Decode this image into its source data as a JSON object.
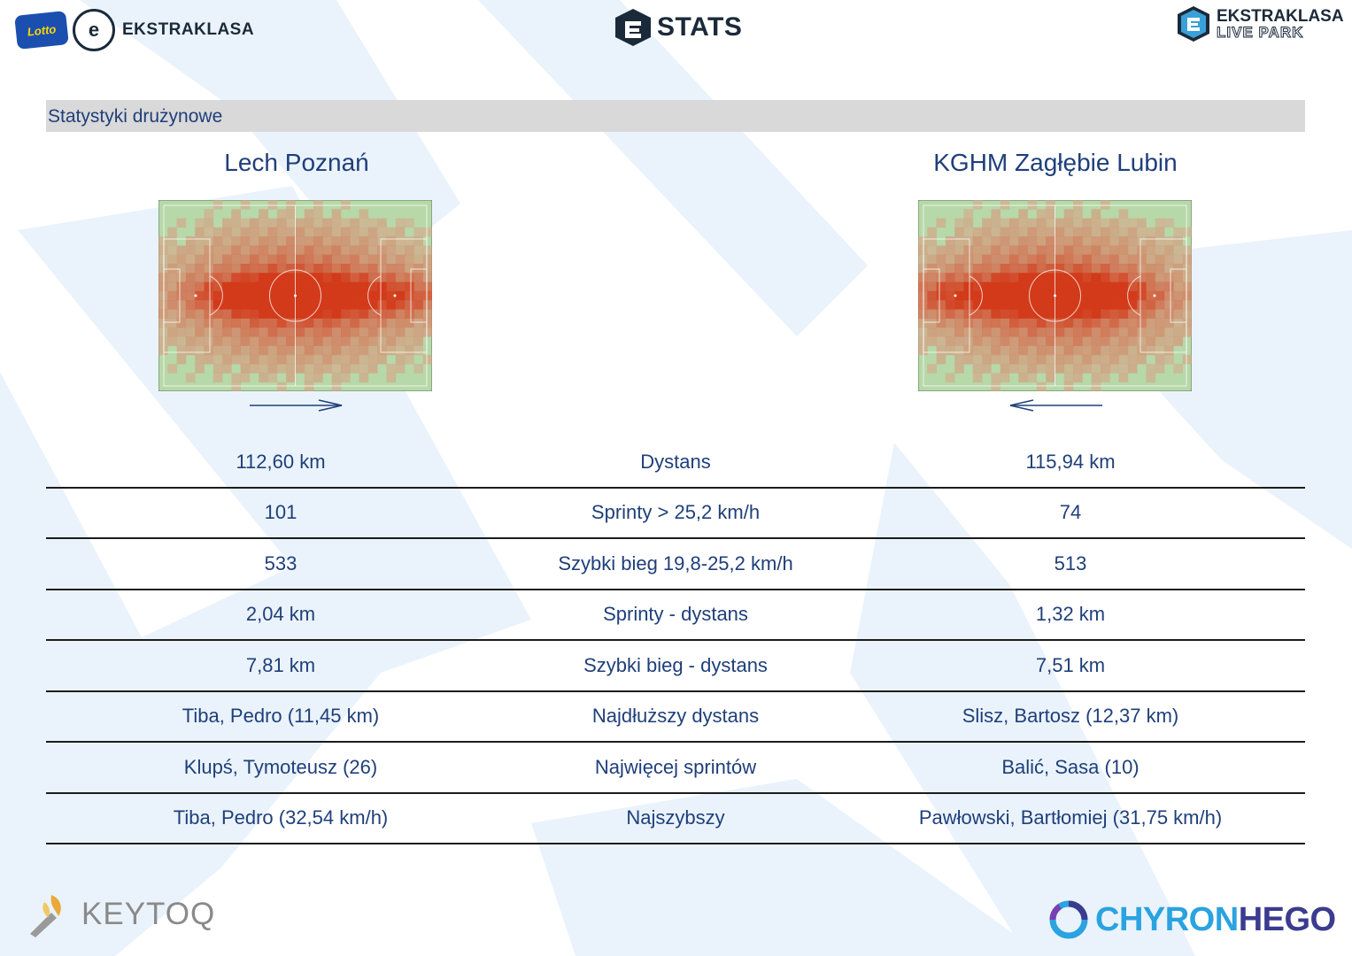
{
  "header": {
    "left_badge": "Lotto",
    "left_logo_text": "EKSTRAKLASA",
    "center_logo_text": "STATS",
    "right_logo_line1": "EKSTRAKLASA",
    "right_logo_line2": "LIVE PARK"
  },
  "section": {
    "title": "Statystyki drużynowe"
  },
  "teams": {
    "left": {
      "name": "Lech Poznań",
      "attack_direction": "right"
    },
    "right": {
      "name": "KGHM Zagłębie Lubin",
      "attack_direction": "left"
    }
  },
  "stats": {
    "rows": [
      {
        "left": "112,60 km",
        "label": "Dystans",
        "right": "115,94 km"
      },
      {
        "left": "101",
        "label": "Sprinty > 25,2 km/h",
        "right": "74"
      },
      {
        "left": "533",
        "label": "Szybki bieg 19,8-25,2 km/h",
        "right": "513"
      },
      {
        "left": "2,04 km",
        "label": "Sprinty - dystans",
        "right": "1,32 km"
      },
      {
        "left": "7,81 km",
        "label": "Szybki bieg - dystans",
        "right": "7,51 km"
      },
      {
        "left": "Tiba, Pedro (11,45 km)",
        "label": "Najdłuższy dystans",
        "right": "Slisz, Bartosz (12,37 km)"
      },
      {
        "left": "Klupś, Tymoteusz (26)",
        "label": "Najwięcej sprintów",
        "right": "Balić, Sasa (10)"
      },
      {
        "left": "Tiba, Pedro (32,54 km/h)",
        "label": "Najszybszy",
        "right": "Pawłowski, Bartłomiej (31,75 km/h)"
      }
    ]
  },
  "footer": {
    "left_logo_text": "KEYTOQ",
    "right_logo_text_a": "CHYRON",
    "right_logo_text_b": "HEGO"
  },
  "colors": {
    "text_primary": "#1f3f7a",
    "section_bar": "#d9d9d9",
    "pitch_grass": "#b7d8a8",
    "heat_low": "#d9a58a",
    "heat_high": "#d23a1a"
  }
}
